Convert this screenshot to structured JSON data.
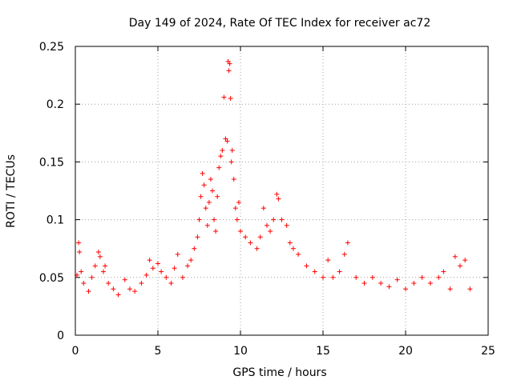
{
  "chart_data": {
    "type": "scatter",
    "title": "Day 149 of 2024, Rate Of TEC Index for receiver ac72",
    "xlabel": "GPS time / hours",
    "ylabel": "ROTI / TECUs",
    "xlim": [
      0,
      25
    ],
    "ylim": [
      0,
      0.25
    ],
    "x_ticks": [
      0,
      5,
      10,
      15,
      20,
      25
    ],
    "y_ticks": [
      0,
      0.05,
      0.1,
      0.15,
      0.2,
      0.25
    ],
    "x_tick_labels": [
      "0",
      "5",
      "10",
      "15",
      "20",
      "25"
    ],
    "y_tick_labels": [
      "0",
      "0.05",
      "0.1",
      "0.15",
      "0.2",
      "0.25"
    ],
    "grid": true,
    "marker": "+",
    "color": "#ff0000",
    "series": [
      {
        "name": "ROTI",
        "points": [
          [
            0.1,
            0.052
          ],
          [
            0.2,
            0.08
          ],
          [
            0.25,
            0.072
          ],
          [
            0.35,
            0.055
          ],
          [
            0.5,
            0.045
          ],
          [
            0.8,
            0.038
          ],
          [
            1.0,
            0.05
          ],
          [
            1.2,
            0.06
          ],
          [
            1.4,
            0.072
          ],
          [
            1.5,
            0.068
          ],
          [
            1.7,
            0.055
          ],
          [
            1.8,
            0.06
          ],
          [
            2.0,
            0.045
          ],
          [
            2.3,
            0.04
          ],
          [
            2.6,
            0.035
          ],
          [
            3.0,
            0.048
          ],
          [
            3.3,
            0.04
          ],
          [
            3.6,
            0.038
          ],
          [
            4.0,
            0.045
          ],
          [
            4.3,
            0.052
          ],
          [
            4.5,
            0.065
          ],
          [
            4.7,
            0.058
          ],
          [
            5.0,
            0.062
          ],
          [
            5.2,
            0.055
          ],
          [
            5.5,
            0.05
          ],
          [
            5.8,
            0.045
          ],
          [
            6.0,
            0.058
          ],
          [
            6.2,
            0.07
          ],
          [
            6.5,
            0.05
          ],
          [
            6.8,
            0.06
          ],
          [
            7.0,
            0.065
          ],
          [
            7.2,
            0.075
          ],
          [
            7.4,
            0.085
          ],
          [
            7.5,
            0.1
          ],
          [
            7.6,
            0.12
          ],
          [
            7.7,
            0.14
          ],
          [
            7.8,
            0.13
          ],
          [
            7.9,
            0.11
          ],
          [
            8.0,
            0.095
          ],
          [
            8.1,
            0.115
          ],
          [
            8.2,
            0.135
          ],
          [
            8.3,
            0.125
          ],
          [
            8.4,
            0.1
          ],
          [
            8.5,
            0.09
          ],
          [
            8.6,
            0.12
          ],
          [
            8.7,
            0.145
          ],
          [
            8.8,
            0.155
          ],
          [
            8.9,
            0.16
          ],
          [
            9.0,
            0.206
          ],
          [
            9.1,
            0.17
          ],
          [
            9.2,
            0.168
          ],
          [
            9.25,
            0.237
          ],
          [
            9.3,
            0.229
          ],
          [
            9.35,
            0.235
          ],
          [
            9.4,
            0.205
          ],
          [
            9.45,
            0.15
          ],
          [
            9.5,
            0.16
          ],
          [
            9.6,
            0.135
          ],
          [
            9.7,
            0.11
          ],
          [
            9.8,
            0.1
          ],
          [
            9.9,
            0.115
          ],
          [
            10.0,
            0.09
          ],
          [
            10.3,
            0.085
          ],
          [
            10.6,
            0.08
          ],
          [
            11.0,
            0.075
          ],
          [
            11.2,
            0.085
          ],
          [
            11.4,
            0.11
          ],
          [
            11.6,
            0.095
          ],
          [
            11.8,
            0.09
          ],
          [
            12.0,
            0.1
          ],
          [
            12.2,
            0.122
          ],
          [
            12.3,
            0.118
          ],
          [
            12.5,
            0.1
          ],
          [
            12.8,
            0.095
          ],
          [
            13.0,
            0.08
          ],
          [
            13.2,
            0.075
          ],
          [
            13.5,
            0.07
          ],
          [
            14.0,
            0.06
          ],
          [
            14.5,
            0.055
          ],
          [
            15.0,
            0.05
          ],
          [
            15.3,
            0.065
          ],
          [
            15.6,
            0.05
          ],
          [
            16.0,
            0.055
          ],
          [
            16.3,
            0.07
          ],
          [
            16.5,
            0.08
          ],
          [
            17.0,
            0.05
          ],
          [
            17.5,
            0.045
          ],
          [
            18.0,
            0.05
          ],
          [
            18.5,
            0.045
          ],
          [
            19.0,
            0.042
          ],
          [
            19.5,
            0.048
          ],
          [
            20.0,
            0.04
          ],
          [
            20.5,
            0.045
          ],
          [
            21.0,
            0.05
          ],
          [
            21.5,
            0.045
          ],
          [
            22.0,
            0.05
          ],
          [
            22.3,
            0.055
          ],
          [
            22.7,
            0.04
          ],
          [
            23.0,
            0.068
          ],
          [
            23.3,
            0.06
          ],
          [
            23.6,
            0.065
          ],
          [
            23.9,
            0.04
          ]
        ]
      }
    ]
  }
}
